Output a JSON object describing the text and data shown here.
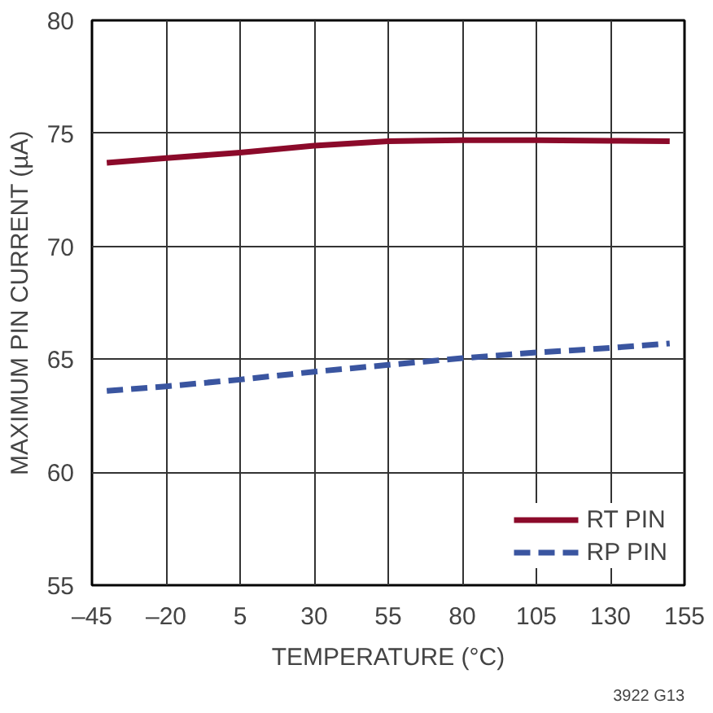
{
  "chart_data": {
    "type": "line",
    "xlabel": "TEMPERATURE (°C)",
    "ylabel": "MAXIMUM PIN CURRENT (µA)",
    "x": [
      -40,
      -20,
      5,
      30,
      55,
      80,
      105,
      130,
      150
    ],
    "series": [
      {
        "name": "RT PIN",
        "color": "#8b0a2a",
        "line_style": "solid",
        "values": [
          73.7,
          73.9,
          74.15,
          74.45,
          74.65,
          74.7,
          74.7,
          74.67,
          74.65
        ]
      },
      {
        "name": "RP PIN",
        "color": "#3a55a0",
        "line_style": "dashed",
        "values": [
          63.6,
          63.8,
          64.1,
          64.45,
          64.75,
          65.05,
          65.3,
          65.5,
          65.7
        ]
      }
    ],
    "xlim": [
      -45,
      155
    ],
    "xticks": [
      {
        "value": -45,
        "label": "–45"
      },
      {
        "value": -20,
        "label": "–20"
      },
      5,
      30,
      55,
      80,
      105,
      130,
      155
    ],
    "ylim": [
      55,
      80
    ],
    "yticks": [
      55,
      60,
      65,
      70,
      75,
      80
    ],
    "grid": true,
    "legend": "bottom right",
    "marker": "none",
    "annotations": [
      "3922 G13"
    ]
  }
}
